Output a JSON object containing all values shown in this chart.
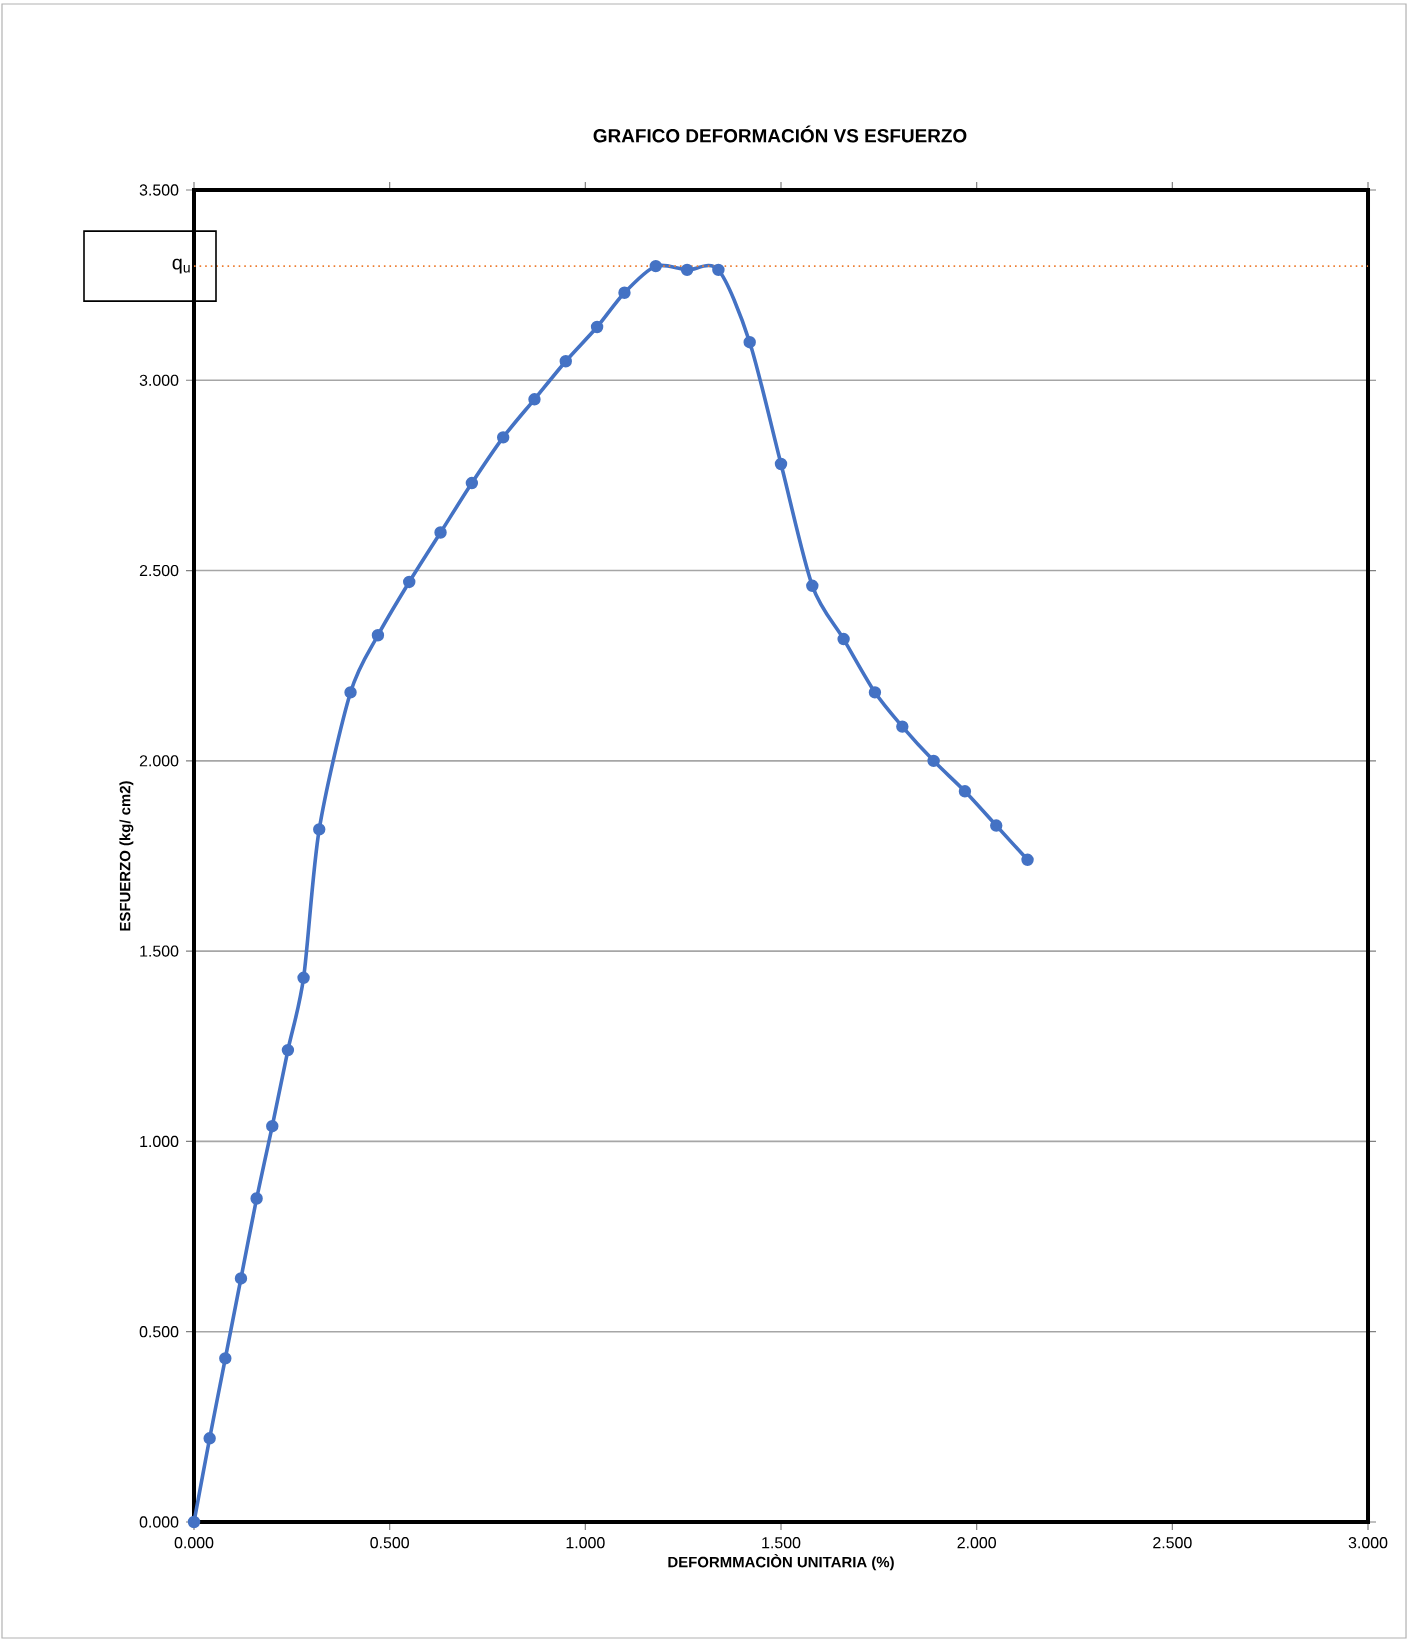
{
  "chart_data": {
    "type": "line",
    "title": "GRAFICO DEFORMACIÓN VS ESFUERZO",
    "xlabel": "DEFORMMACIÒN UNITARIA (%)",
    "ylabel": "ESFUERZO  (kg/ cm2)",
    "x": [
      0,
      0.04,
      0.08,
      0.12,
      0.16,
      0.2,
      0.24,
      0.28,
      0.32,
      0.4,
      0.47,
      0.55,
      0.63,
      0.71,
      0.79,
      0.87,
      0.95,
      1.03,
      1.1,
      1.18,
      1.26,
      1.34,
      1.42,
      1.5,
      1.58,
      1.66,
      1.74,
      1.81,
      1.89,
      1.97,
      2.05,
      2.13
    ],
    "series": [
      {
        "color": "#4472c4",
        "values": [
          0,
          0.22,
          0.43,
          0.64,
          0.85,
          1.04,
          1.24,
          1.43,
          1.82,
          2.18,
          2.33,
          2.47,
          2.6,
          2.73,
          2.85,
          2.95,
          3.05,
          3.14,
          3.23,
          3.3,
          3.29,
          3.29,
          3.1,
          2.78,
          2.46,
          2.32,
          2.18,
          2.09,
          2.0,
          1.92,
          1.83,
          1.74
        ]
      }
    ],
    "marker": "circle",
    "line_style": "solid",
    "grid": "y",
    "xlim": [
      0,
      3
    ],
    "ylim": [
      0,
      3.5
    ],
    "xticks": [
      {
        "value": 0,
        "label": "0.000"
      },
      {
        "value": 0.5,
        "label": "0.500"
      },
      {
        "value": 1,
        "label": "1.000"
      },
      {
        "value": 1.5,
        "label": "1.500"
      },
      {
        "value": 2,
        "label": "2.000"
      },
      {
        "value": 2.5,
        "label": "2.500"
      },
      {
        "value": 3,
        "label": "3.000"
      }
    ],
    "yticks": [
      {
        "value": 0,
        "label": "0.000"
      },
      {
        "value": 0.5,
        "label": "0.500"
      },
      {
        "value": 1,
        "label": "1.000"
      },
      {
        "value": 1.5,
        "label": "1.500"
      },
      {
        "value": 2,
        "label": "2.000"
      },
      {
        "value": 2.5,
        "label": "2.500"
      },
      {
        "value": 3,
        "label": "3.000"
      },
      {
        "value": 3.5,
        "label": "3.500"
      }
    ],
    "ref_lines": [
      {
        "axis": "y",
        "value": 3.3,
        "label": "q$_{u}$",
        "color": "#ed7d31",
        "line_style": "dotted"
      }
    ]
  }
}
